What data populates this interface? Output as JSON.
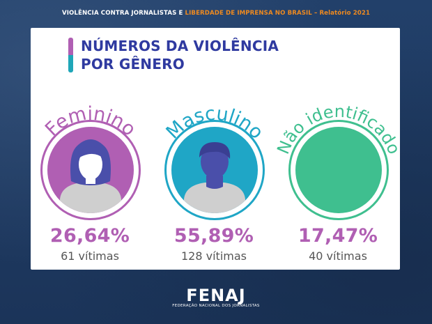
{
  "header": {
    "part1": "VIOLÊNCIA CONTRA JORNALISTAS E ",
    "part2": "LIBERDADE DE IMPRENSA NO BRASIL – Relatório 2021"
  },
  "title": {
    "line1": "NÚMEROS DA VIOLÊNCIA",
    "line2": "POR GÊNERO"
  },
  "groups": [
    {
      "label": "Feminino",
      "percent": "26,64%",
      "victims": "61 vítimas",
      "color": "#b05fb3"
    },
    {
      "label": "Masculino",
      "percent": "55,89%",
      "victims": "128 vítimas",
      "color": "#1fa6c6"
    },
    {
      "label": "Não identificado",
      "percent": "17,47%",
      "victims": "40 vítimas",
      "color": "#3fbf8f"
    }
  ],
  "colors": {
    "avatar_head": "#4a4faa",
    "avatar_body": "#cfcfcf",
    "percent_text": "#b05fb3"
  },
  "icons": [
    "female-avatar-icon",
    "male-avatar-icon"
  ],
  "footer": {
    "logo": "FENAJ",
    "subtitle": "FEDERAÇÃO NACIONAL DOS JORNALISTAS"
  }
}
